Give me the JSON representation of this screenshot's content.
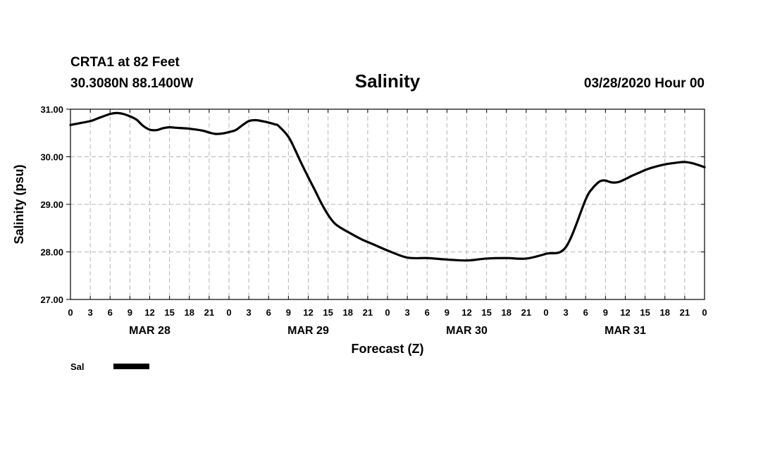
{
  "chart_data": {
    "type": "line",
    "title": "Salinity",
    "station_line": "CRTA1 at 82 Feet",
    "coords_line": "30.3080N 88.1400W",
    "run_label": "03/28/2020 Hour 00",
    "xlabel": "Forecast (Z)",
    "ylabel": "Salinity (psu)",
    "ylim": [
      27.0,
      31.0
    ],
    "y_ticks": [
      "31.00",
      "30.00",
      "29.00",
      "28.00",
      "27.00"
    ],
    "x_range_hours": [
      0,
      96
    ],
    "x_tick_labels": [
      "0",
      "3",
      "6",
      "9",
      "12",
      "15",
      "18",
      "21",
      "0",
      "3",
      "6",
      "9",
      "12",
      "15",
      "18",
      "21",
      "0",
      "3",
      "6",
      "9",
      "12",
      "15",
      "18",
      "21",
      "0",
      "3",
      "6",
      "9",
      "12",
      "15",
      "18",
      "21",
      "0"
    ],
    "day_labels": [
      {
        "label": "MAR 28",
        "hour": 12
      },
      {
        "label": "MAR 29",
        "hour": 36
      },
      {
        "label": "MAR 30",
        "hour": 60
      },
      {
        "label": "MAR 31",
        "hour": 84
      }
    ],
    "grid": true,
    "legend": [
      {
        "name": "Sal",
        "color": "#000000"
      }
    ],
    "legend_placement": "bottom-left",
    "series": [
      {
        "name": "Sal",
        "x": [
          0,
          3,
          4,
          6,
          7,
          8,
          9,
          10,
          11,
          12,
          13,
          14,
          15,
          16,
          18,
          20,
          21,
          22,
          23,
          24,
          25,
          26,
          27,
          28,
          29,
          30,
          31,
          31.5,
          33,
          34,
          35,
          36,
          37,
          38,
          39,
          40,
          41,
          42,
          44,
          46,
          48,
          51,
          54,
          57,
          60,
          63,
          66,
          69,
          72,
          75,
          78,
          79,
          80,
          80.5,
          81,
          82,
          83,
          84,
          85,
          86,
          87,
          88,
          90,
          92,
          93,
          94,
          95,
          96
        ],
        "y": [
          30.67,
          30.75,
          30.8,
          30.9,
          30.92,
          30.9,
          30.85,
          30.78,
          30.65,
          30.57,
          30.56,
          30.6,
          30.62,
          30.61,
          30.59,
          30.55,
          30.51,
          30.48,
          30.49,
          30.52,
          30.56,
          30.66,
          30.75,
          30.77,
          30.75,
          30.72,
          30.68,
          30.65,
          30.42,
          30.15,
          29.85,
          29.57,
          29.3,
          29.02,
          28.78,
          28.6,
          28.5,
          28.42,
          28.27,
          28.15,
          28.03,
          27.88,
          27.87,
          27.84,
          27.82,
          27.86,
          27.87,
          27.86,
          27.96,
          28.1,
          29.1,
          29.33,
          29.47,
          29.5,
          29.5,
          29.46,
          29.47,
          29.53,
          29.6,
          29.66,
          29.72,
          29.77,
          29.84,
          29.88,
          29.89,
          29.87,
          29.83,
          29.78
        ]
      }
    ]
  }
}
